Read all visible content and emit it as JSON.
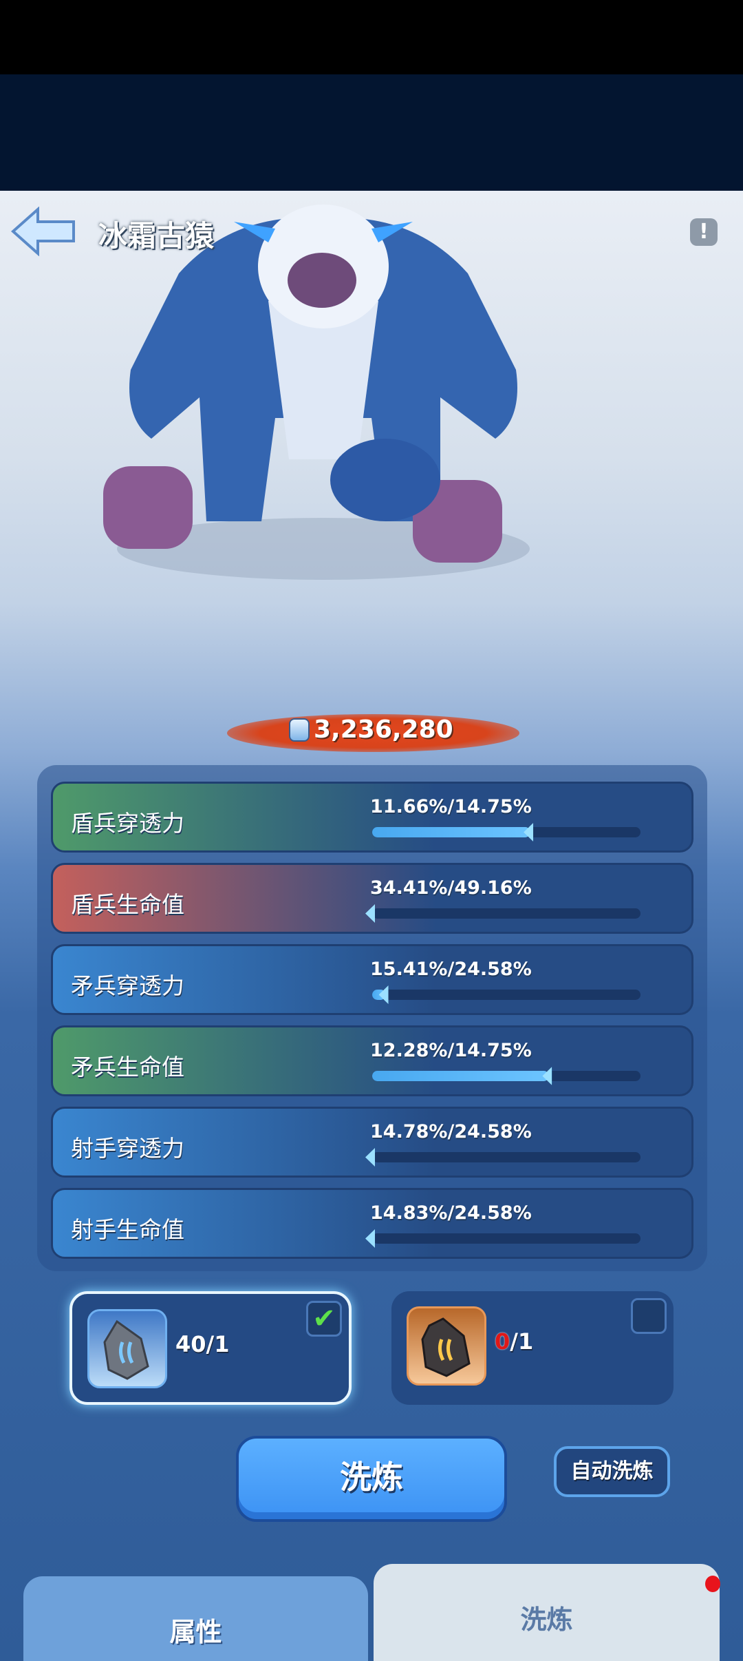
{
  "header": {
    "title": "冰霜古猿",
    "back_icon": "back-arrow-icon",
    "info_icon": "exclamation-icon"
  },
  "power": {
    "value": "3,236,280",
    "icon": "fist-icon"
  },
  "stats": [
    {
      "label": "盾兵穿透力",
      "value": "11.66%/14.75%",
      "fill": 0.59,
      "color": "#4f9a6a"
    },
    {
      "label": "盾兵生命值",
      "value": "34.41%/49.16%",
      "fill": 0.0,
      "color": "#c4605c"
    },
    {
      "label": "矛兵穿透力",
      "value": "15.41%/24.58%",
      "fill": 0.05,
      "color": "#3a86d0"
    },
    {
      "label": "矛兵生命值",
      "value": "12.28%/14.75%",
      "fill": 0.66,
      "color": "#4f9a6a"
    },
    {
      "label": "射手穿透力",
      "value": "14.78%/24.58%",
      "fill": 0.0,
      "color": "#3a86d0"
    },
    {
      "label": "射手生命值",
      "value": "14.83%/24.58%",
      "fill": 0.0,
      "color": "#3a86d0"
    }
  ],
  "materials": [
    {
      "have": "40",
      "need": "/1",
      "checked": true,
      "icon": "blue-stone-icon"
    },
    {
      "have": "0",
      "need": "/1",
      "checked": false,
      "icon": "gold-stone-icon",
      "have_color": "#e01818"
    }
  ],
  "actions": {
    "wash": "洗炼",
    "auto_wash": "自动洗炼"
  },
  "tabs": [
    {
      "label": "属性",
      "active": false
    },
    {
      "label": "洗炼",
      "active": true,
      "badge": true
    }
  ]
}
